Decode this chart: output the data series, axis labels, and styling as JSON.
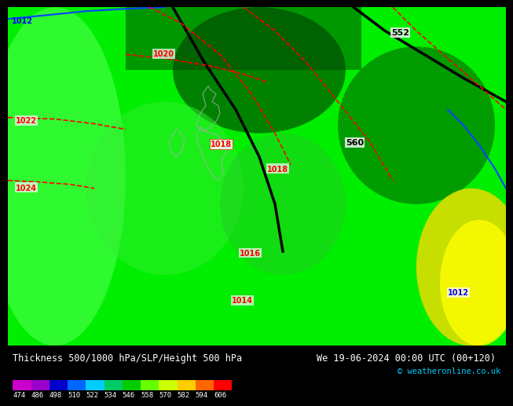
{
  "title_left": "Thickness 500/1000 hPa/SLP/Height 500 hPa",
  "title_right": "We 19-06-2024 00:00 UTC (00+120)",
  "copyright": "© weatheronline.co.uk",
  "colorbar_values": [
    474,
    486,
    498,
    510,
    522,
    534,
    546,
    558,
    570,
    582,
    594,
    606
  ],
  "colorbar_colors": [
    "#cc00cc",
    "#9900cc",
    "#0000cc",
    "#0066ff",
    "#00ccff",
    "#00cc66",
    "#00cc00",
    "#66ff00",
    "#ccff00",
    "#ffcc00",
    "#ff6600",
    "#ff0000"
  ],
  "background_color": "#00dd00",
  "fig_width": 6.34,
  "fig_height": 4.9,
  "title_fontsize": 8.5,
  "colorbar_label_fontsize": 7.5
}
